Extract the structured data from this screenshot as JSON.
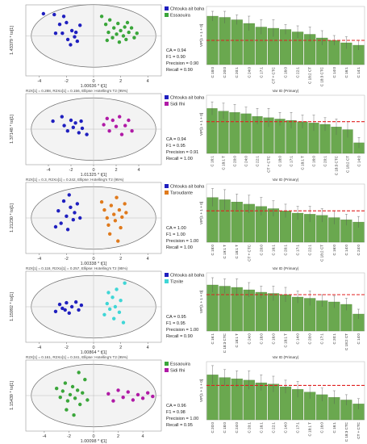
{
  "chart_data": [
    {
      "type": "scatter",
      "legend": [
        "Chtouka ait baha",
        "Essaouira"
      ],
      "colors": [
        "#1f1fbf",
        "#3aa63a"
      ],
      "series": [
        {
          "name": "Chtouka ait baha",
          "points": [
            [
              -3.7,
              2.5
            ],
            [
              -2.9,
              2.4
            ],
            [
              -2.5,
              1.3
            ],
            [
              -2.3,
              0.3
            ],
            [
              -2.2,
              2.2
            ],
            [
              -2.0,
              1.5
            ],
            [
              -1.9,
              -0.4
            ],
            [
              -1.6,
              0.6
            ],
            [
              -1.4,
              -0.1
            ],
            [
              -1.3,
              0.4
            ],
            [
              -1.2,
              -0.6
            ],
            [
              -1.0,
              1.2
            ],
            [
              -2.8,
              0.3
            ],
            [
              -1.7,
              -1.0
            ]
          ]
        },
        {
          "name": "Essaouira",
          "points": [
            [
              0.6,
              2.2
            ],
            [
              0.9,
              1.3
            ],
            [
              1.1,
              0.4
            ],
            [
              1.2,
              1.8
            ],
            [
              1.4,
              -0.2
            ],
            [
              1.5,
              0.9
            ],
            [
              1.7,
              0.2
            ],
            [
              1.8,
              1.4
            ],
            [
              1.9,
              -0.7
            ],
            [
              2.0,
              0.6
            ],
            [
              2.2,
              0.0
            ],
            [
              2.3,
              1.0
            ],
            [
              2.4,
              -0.4
            ],
            [
              2.6,
              0.4
            ],
            [
              2.8,
              0.9
            ],
            [
              3.0,
              -0.2
            ],
            [
              3.2,
              0.3
            ],
            [
              1.0,
              -0.5
            ],
            [
              2.5,
              1.5
            ]
          ]
        }
      ],
      "xlabel": "1.00636 * t[1]",
      "ylabel": "1.43379 * to[1]",
      "xticks": [
        -4,
        -2,
        0,
        2,
        4
      ],
      "xlim": [
        -5,
        5
      ],
      "ylim": [
        -4.5,
        3.5
      ],
      "footnote": "R2X[1] = 0.288, R2Xo[1] = 0.156, Ellipse: Hotelling's T2 (95%)",
      "metrics": [
        "CA = 0.94",
        "F1 = 0.90",
        "Precision = 0.90",
        "Recall = 0.90"
      ]
    },
    {
      "type": "bar",
      "categories": [
        "C 18:0",
        "C 20:0",
        "C 20:1",
        "C 24:0",
        "C 17:1",
        "CT + CTC",
        "C 16:0",
        "C 22:1",
        "C 18:2 CT",
        "C 18:3 CTC",
        "C 14:0",
        "C 16:1",
        "C 14:1"
      ],
      "values": [
        2.0,
        1.95,
        1.85,
        1.7,
        1.55,
        1.5,
        1.45,
        1.35,
        1.25,
        1.1,
        1.0,
        0.9,
        0.8
      ],
      "errors": [
        0.2,
        0.25,
        0.2,
        0.3,
        0.3,
        0.35,
        0.2,
        0.25,
        0.3,
        0.3,
        0.2,
        0.25,
        0.2
      ],
      "threshold": 1.0,
      "ylabel": "VIP[1 + 1 + 0]",
      "xlabel": "Var ID (Primary)",
      "ylim": [
        0,
        2.4
      ]
    },
    {
      "type": "scatter",
      "legend": [
        "Chtouka ait baha",
        "Sidi Ifni"
      ],
      "colors": [
        "#1f1fbf",
        "#b01aa6"
      ],
      "series": [
        {
          "name": "Chtouka ait baha",
          "points": [
            [
              -3.6,
              0.9
            ],
            [
              -2.8,
              1.4
            ],
            [
              -2.6,
              0.4
            ],
            [
              -2.3,
              -0.2
            ],
            [
              -2.0,
              1.0
            ],
            [
              -1.8,
              0.2
            ],
            [
              -1.6,
              0.7
            ],
            [
              -1.3,
              -0.4
            ],
            [
              -1.0,
              0.1
            ],
            [
              -0.6,
              -0.6
            ],
            [
              -1.1,
              0.9
            ]
          ]
        },
        {
          "name": "Sidi Ifni",
          "points": [
            [
              0.9,
              0.5
            ],
            [
              1.4,
              -0.2
            ],
            [
              1.7,
              1.0
            ],
            [
              2.0,
              0.3
            ],
            [
              2.3,
              1.4
            ],
            [
              2.5,
              -0.6
            ],
            [
              2.8,
              0.4
            ],
            [
              3.1,
              1.0
            ],
            [
              3.4,
              -0.2
            ],
            [
              1.2,
              1.2
            ]
          ]
        }
      ],
      "xlabel": "1.01325 * t[1]",
      "ylabel": "1.37148 * to[1]",
      "xticks": [
        -4,
        -2,
        0,
        2,
        4
      ],
      "xlim": [
        -6,
        6
      ],
      "ylim": [
        -4,
        4
      ],
      "footnote": "R2X[1] = 0.3, R2Xo[1] = 0.242, Ellipse: Hotelling's T2 (95%)",
      "metrics": [
        "CA = 0.94",
        "F1 = 0.95",
        "Precision = 0.91",
        "Recall = 1.00"
      ]
    },
    {
      "type": "bar",
      "categories": [
        "C 16:1",
        "C 18:1 T",
        "C 20:0",
        "C 24:0",
        "C 22:1",
        "CT + CTC",
        "C 18:0",
        "C 17:1",
        "C 18:1 T",
        "C 16:0",
        "C 20:1",
        "C 18:3 CTC",
        "C 18:2 CT",
        "C 14:0"
      ],
      "values": [
        1.7,
        1.6,
        1.55,
        1.5,
        1.4,
        1.35,
        1.3,
        1.25,
        1.2,
        1.15,
        1.1,
        1.0,
        0.9,
        0.4
      ],
      "errors": [
        0.25,
        0.3,
        0.3,
        0.25,
        0.3,
        0.35,
        0.25,
        0.3,
        0.25,
        0.3,
        0.25,
        0.3,
        0.3,
        0.2
      ],
      "threshold": 1.2,
      "ylabel": "VIP[1 + 1 + 0]",
      "xlabel": "Var ID (Primary)",
      "ylim": [
        0,
        2.2
      ]
    },
    {
      "type": "scatter",
      "legend": [
        "Chtouka ait baha",
        "Taroudante"
      ],
      "colors": [
        "#1f1fbf",
        "#e07a1c"
      ],
      "series": [
        {
          "name": "Chtouka ait baha",
          "points": [
            [
              -2.6,
              0.8
            ],
            [
              -2.4,
              -0.6
            ],
            [
              -2.2,
              1.9
            ],
            [
              -2.0,
              0.2
            ],
            [
              -1.8,
              2.6
            ],
            [
              -1.7,
              1.2
            ],
            [
              -1.5,
              -0.2
            ],
            [
              -1.4,
              0.6
            ],
            [
              -1.2,
              1.6
            ],
            [
              -2.8,
              -1.0
            ],
            [
              -1.9,
              -1.3
            ],
            [
              -1.0,
              0.0
            ]
          ]
        },
        {
          "name": "Taroudante",
          "points": [
            [
              0.6,
              1.8
            ],
            [
              0.8,
              0.9
            ],
            [
              1.0,
              0.0
            ],
            [
              1.1,
              -0.8
            ],
            [
              1.3,
              1.4
            ],
            [
              1.5,
              0.4
            ],
            [
              1.6,
              -0.3
            ],
            [
              1.7,
              2.3
            ],
            [
              1.9,
              0.9
            ],
            [
              2.0,
              -1.1
            ],
            [
              2.1,
              0.1
            ],
            [
              2.3,
              1.6
            ],
            [
              1.2,
              -1.8
            ],
            [
              1.8,
              -2.6
            ],
            [
              2.4,
              0.6
            ]
          ]
        }
      ],
      "xlabel": "1.00338 * t[1]",
      "ylabel": "1.21230 * to[1]",
      "xticks": [
        -4,
        -2,
        0,
        2,
        4
      ],
      "xlim": [
        -5,
        5
      ],
      "ylim": [
        -4,
        4
      ],
      "footnote": "R2X[1] = 0.118, R2Xo[1] = 0.257, Ellipse: Hotelling's T2 (95%)",
      "metrics": [
        "CA = 1.00",
        "F1 = 1.00",
        "Precision = 1.00",
        "Recall = 1.00"
      ]
    },
    {
      "type": "bar",
      "categories": [
        "C 18:0",
        "C 19:1 T",
        "C 18:1 T",
        "CT + CTC",
        "C 20:0",
        "C 16:1",
        "C 20:1",
        "C 17:1",
        "C 22:1",
        "C 18:2 CT",
        "C 16:0",
        "C 14:0",
        "C 24:0"
      ],
      "values": [
        2.0,
        1.9,
        1.8,
        1.7,
        1.6,
        1.5,
        1.4,
        1.3,
        1.25,
        1.2,
        1.1,
        1.0,
        0.9
      ],
      "errors": [
        0.4,
        0.45,
        0.35,
        0.4,
        0.4,
        0.35,
        0.3,
        0.3,
        0.35,
        0.3,
        0.3,
        0.25,
        0.25
      ],
      "threshold": 1.4,
      "ylabel": "VIP[1 + 1 + 0]",
      "xlabel": "Var ID (Primary)",
      "ylim": [
        0,
        2.6
      ]
    },
    {
      "type": "scatter",
      "legend": [
        "Chtouka ait baha",
        "Tiznite"
      ],
      "colors": [
        "#1f1fbf",
        "#3fd6d6"
      ],
      "series": [
        {
          "name": "Chtouka ait baha",
          "points": [
            [
              -2.8,
              -0.6
            ],
            [
              -2.5,
              0.3
            ],
            [
              -2.3,
              -0.2
            ],
            [
              -2.0,
              0.5
            ],
            [
              -1.8,
              -0.8
            ],
            [
              -1.6,
              0.0
            ],
            [
              -1.3,
              0.6
            ],
            [
              -1.1,
              -0.4
            ],
            [
              -0.9,
              0.2
            ],
            [
              -2.1,
              -0.4
            ]
          ]
        },
        {
          "name": "Tiznite",
          "points": [
            [
              0.8,
              -1.0
            ],
            [
              1.0,
              0.4
            ],
            [
              1.2,
              -0.3
            ],
            [
              1.4,
              1.2
            ],
            [
              1.5,
              -1.5
            ],
            [
              1.6,
              0.0
            ],
            [
              1.7,
              2.2
            ],
            [
              1.9,
              -0.7
            ],
            [
              2.0,
              0.8
            ],
            [
              2.2,
              -2.0
            ],
            [
              2.3,
              3.0
            ],
            [
              1.1,
              1.8
            ]
          ]
        }
      ],
      "xlabel": "1.00864 * t[1]",
      "ylabel": "1.15992 * to[1]",
      "xticks": [
        -4,
        -2,
        0,
        2,
        4
      ],
      "xlim": [
        -5,
        5
      ],
      "ylim": [
        -4.5,
        4.5
      ],
      "footnote": "R2X[1] = 0.161, R2Xo[1] = 0.341, Ellipse: Hotelling's T2 (95%)",
      "metrics": [
        "CA = 0.95",
        "F1 = 0.95",
        "Precision = 1.00",
        "Recall = 0.90"
      ]
    },
    {
      "type": "bar",
      "categories": [
        "C 16:1",
        "C 18:3 CTC",
        "C 18:1 T",
        "C 24:0",
        "C 18:0",
        "C 16:0",
        "C 18:1 T",
        "C 14:0",
        "C 20:0",
        "C 17:1",
        "C 20:1",
        "C 18:2 CT",
        "C 14:0"
      ],
      "values": [
        1.9,
        1.85,
        1.8,
        1.7,
        1.6,
        1.55,
        1.5,
        1.4,
        1.35,
        1.25,
        1.2,
        1.1,
        0.7
      ],
      "errors": [
        0.3,
        0.3,
        0.35,
        0.3,
        0.25,
        0.3,
        0.3,
        0.25,
        0.3,
        0.25,
        0.25,
        0.25,
        0.2
      ],
      "threshold": 1.5,
      "ylabel": "VIP[1 + 1 + 0]",
      "xlabel": "Var ID (Primary)",
      "ylim": [
        0,
        2.4
      ]
    },
    {
      "type": "scatter",
      "legend": [
        "Essaouira",
        "Sidi Ifni"
      ],
      "colors": [
        "#3aa63a",
        "#b01aa6"
      ],
      "series": [
        {
          "name": "Essaouira",
          "points": [
            [
              -3.0,
              0.8
            ],
            [
              -2.7,
              -0.2
            ],
            [
              -2.5,
              0.5
            ],
            [
              -2.3,
              1.4
            ],
            [
              -2.1,
              -0.6
            ],
            [
              -1.9,
              0.1
            ],
            [
              -1.7,
              1.0
            ],
            [
              -1.5,
              -0.3
            ],
            [
              -1.3,
              0.6
            ],
            [
              -1.1,
              -1.0
            ],
            [
              -0.9,
              0.3
            ],
            [
              -0.7,
              1.8
            ],
            [
              -2.2,
              -1.6
            ],
            [
              -1.6,
              -2.2
            ],
            [
              -0.5,
              -0.5
            ],
            [
              -1.2,
              2.6
            ]
          ]
        },
        {
          "name": "Sidi Ifni",
          "points": [
            [
              1.2,
              0.2
            ],
            [
              1.6,
              -0.6
            ],
            [
              2.0,
              0.6
            ],
            [
              2.4,
              -0.2
            ],
            [
              2.8,
              0.4
            ],
            [
              3.2,
              -0.5
            ],
            [
              3.6,
              0.1
            ],
            [
              4.0,
              -0.3
            ],
            [
              4.4,
              0.3
            ],
            [
              4.8,
              -0.1
            ]
          ]
        }
      ],
      "xlabel": "1.00098 * t[1]",
      "ylabel": "1.15439 * to[1]",
      "xticks": [
        -4,
        -2,
        0,
        2,
        4
      ],
      "xlim": [
        -5.5,
        5.5
      ],
      "ylim": [
        -4,
        4
      ],
      "footnote": "R2X[1] = 0.353, R2Xo[1] = 0.141, Ellipse: Hotelling's T2 (95%)",
      "metrics": [
        "CA = 0.96",
        "F1 = 0.98",
        "Precision = 1.00",
        "Recall = 0.95"
      ]
    },
    {
      "type": "bar",
      "categories": [
        "C 20:0",
        "C 18:0",
        "C 24:0",
        "C 20:1",
        "C 16:1",
        "C 22:1",
        "C 14:0",
        "C 17:1",
        "C 18:1 T",
        "C 16:0",
        "C 16:1",
        "C 18:3 CTC",
        "CT + CTC"
      ],
      "values": [
        1.7,
        1.6,
        1.55,
        1.5,
        1.4,
        1.35,
        1.25,
        1.15,
        1.05,
        0.95,
        0.85,
        0.75,
        0.6
      ],
      "errors": [
        0.35,
        0.3,
        0.3,
        0.35,
        0.3,
        0.3,
        0.25,
        0.3,
        0.25,
        0.25,
        0.25,
        0.2,
        0.2
      ],
      "threshold": 1.3,
      "ylabel": "VIP[1 + 1 + 0]",
      "xlabel": "Var ID (Primary)",
      "ylim": [
        0,
        2.2
      ]
    }
  ]
}
